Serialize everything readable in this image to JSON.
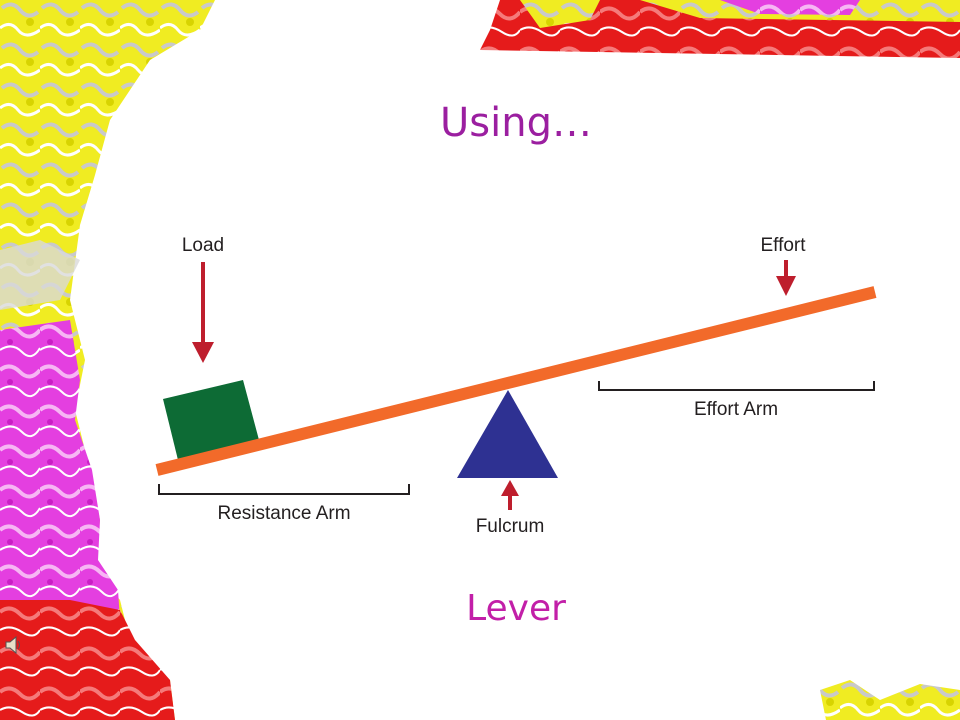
{
  "slide": {
    "title": "Using…",
    "caption": "Lever"
  },
  "diagram": {
    "labels": {
      "load": "Load",
      "effort": "Effort",
      "effort_arm": "Effort Arm",
      "resistance_arm": "Resistance Arm",
      "fulcrum": "Fulcrum"
    },
    "colors": {
      "beam": "#f26a2a",
      "load_box": "#0d6b35",
      "fulcrum": "#2e3192",
      "arrow": "#be1e2d",
      "bracket": "#231f20"
    }
  },
  "decor": {
    "border_colors": [
      "#f2f01e",
      "#e23ae0",
      "#e81818",
      "#cfcfcf"
    ],
    "icon": "speaker-icon"
  }
}
